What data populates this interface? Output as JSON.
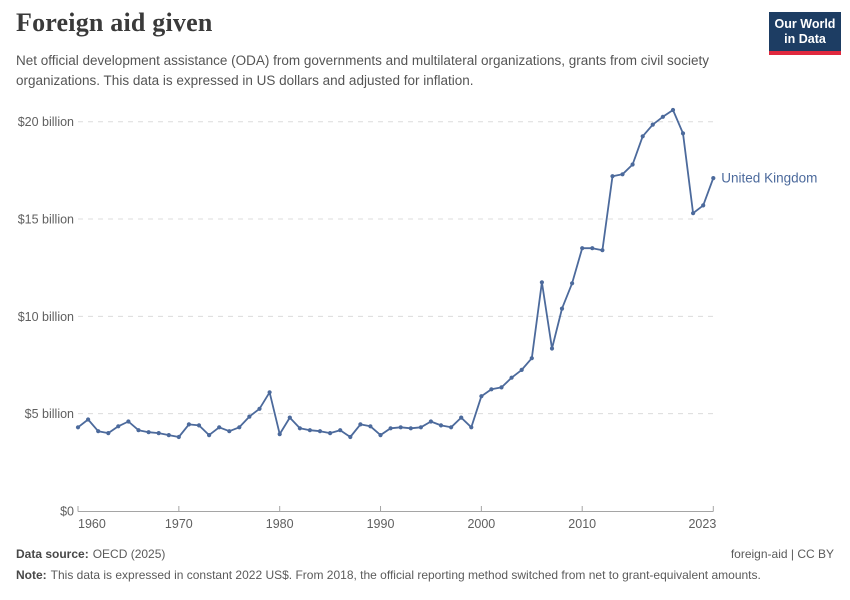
{
  "header": {
    "title": "Foreign aid given",
    "subtitle": "Net official development assistance (ODA) from governments and multilateral organizations, grants from civil society organizations. This data is expressed in US dollars and adjusted for inflation.",
    "logo_line1": "Our World",
    "logo_line2": "in Data"
  },
  "chart_data": {
    "type": "line",
    "title": "Foreign aid given",
    "entity": "United Kingdom",
    "unit": "constant 2022 US$ (billions)",
    "x": [
      1960,
      1961,
      1962,
      1963,
      1964,
      1965,
      1966,
      1967,
      1968,
      1969,
      1970,
      1971,
      1972,
      1973,
      1974,
      1975,
      1976,
      1977,
      1978,
      1979,
      1980,
      1981,
      1982,
      1983,
      1984,
      1985,
      1986,
      1987,
      1988,
      1989,
      1990,
      1991,
      1992,
      1993,
      1994,
      1995,
      1996,
      1997,
      1998,
      1999,
      2000,
      2001,
      2002,
      2003,
      2004,
      2005,
      2006,
      2007,
      2008,
      2009,
      2010,
      2011,
      2012,
      2013,
      2014,
      2015,
      2016,
      2017,
      2018,
      2019,
      2020,
      2021,
      2022,
      2023
    ],
    "values": [
      4.3,
      4.7,
      4.1,
      4.0,
      4.35,
      4.6,
      4.15,
      4.05,
      4.0,
      3.9,
      3.8,
      4.45,
      4.4,
      3.9,
      4.3,
      4.1,
      4.3,
      4.85,
      5.25,
      6.1,
      3.95,
      4.8,
      4.25,
      4.15,
      4.1,
      4.0,
      4.15,
      3.8,
      4.45,
      4.35,
      3.9,
      4.25,
      4.3,
      4.25,
      4.3,
      4.6,
      4.4,
      4.3,
      4.8,
      4.3,
      5.9,
      6.25,
      6.35,
      6.85,
      7.25,
      7.85,
      11.75,
      8.35,
      10.4,
      11.7,
      13.5,
      13.5,
      13.4,
      17.2,
      17.3,
      17.8,
      19.25,
      19.85,
      20.25,
      20.6,
      19.4,
      15.3,
      15.7,
      17.1
    ],
    "x_ticks": [
      1960,
      1970,
      1980,
      1990,
      2000,
      2010,
      2023
    ],
    "y_ticks": [
      {
        "value": 0,
        "label": "$0"
      },
      {
        "value": 5,
        "label": "$5 billion"
      },
      {
        "value": 10,
        "label": "$10 billion"
      },
      {
        "value": 15,
        "label": "$15 billion"
      },
      {
        "value": 20,
        "label": "$20 billion"
      }
    ],
    "xlim": [
      1960,
      2023
    ],
    "ylim": [
      0,
      21
    ],
    "grid": "horizontal-dashed",
    "legend_position": "end-of-line-label",
    "line_color": "#4C6A9C"
  },
  "footer": {
    "datasource_label": "Data source:",
    "datasource_value": "OECD (2025)",
    "license": "foreign-aid | CC BY",
    "note_label": "Note:",
    "note_value": "This data is expressed in constant 2022 US$. From 2018, the official reporting method switched from net to grant-equivalent amounts."
  },
  "colors": {
    "line": "#4C6A9C",
    "logo_bg": "#1D3D63",
    "logo_accent": "#E0293E",
    "grid": "#DCDCDC",
    "axis": "#A5A5A5",
    "tick_text": "#606060",
    "subtitle_text": "#555555"
  }
}
